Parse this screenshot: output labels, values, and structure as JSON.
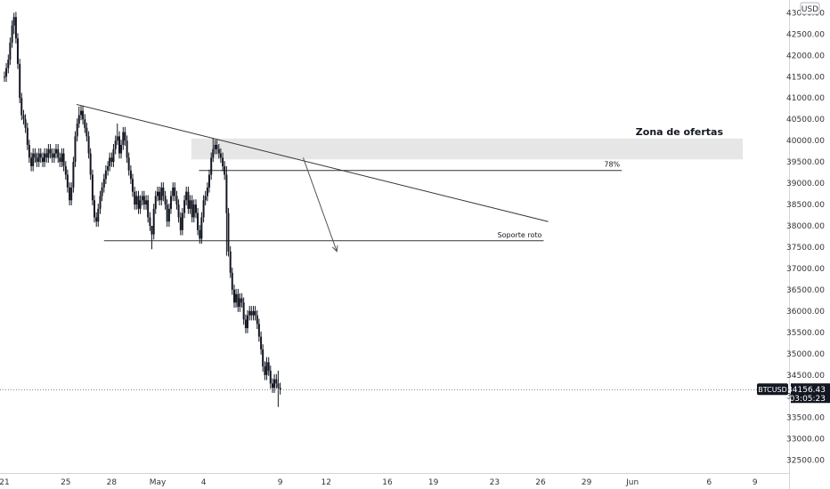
{
  "currency_badge": "USD",
  "symbol_label": "BTCUSD",
  "last_price_label": "34156.43",
  "countdown_label": "03:05:23",
  "chart_data": {
    "type": "candlestick",
    "symbol": "BTCUSD",
    "currency": "USD",
    "last_price": 34156.43,
    "ylim": [
      32200,
      43300
    ],
    "y_ticks": [
      32500,
      33000,
      33500,
      34000,
      34500,
      35000,
      35500,
      36000,
      36500,
      37000,
      37500,
      38000,
      38500,
      39000,
      39500,
      40000,
      40500,
      41000,
      41500,
      42000,
      42500,
      43000
    ],
    "y_tick_labels": [
      "32500.00",
      "33000.00",
      "33500.00",
      "34000.00",
      "34500.00",
      "35000.00",
      "35500.00",
      "36000.00",
      "36500.00",
      "37000.00",
      "37500.00",
      "38000.00",
      "38500.00",
      "39000.00",
      "39500.00",
      "40000.00",
      "40500.00",
      "41000.00",
      "41500.00",
      "42000.00",
      "42500.00",
      "43000.00"
    ],
    "x_ticks": [
      {
        "t": 0,
        "label": "21"
      },
      {
        "t": 4,
        "label": "25"
      },
      {
        "t": 7,
        "label": "28"
      },
      {
        "t": 10,
        "label": "May"
      },
      {
        "t": 13,
        "label": "4"
      },
      {
        "t": 18,
        "label": "9"
      },
      {
        "t": 21,
        "label": "12"
      },
      {
        "t": 25,
        "label": "16"
      },
      {
        "t": 28,
        "label": "19"
      },
      {
        "t": 32,
        "label": "23"
      },
      {
        "t": 35,
        "label": "26"
      },
      {
        "t": 38,
        "label": "29"
      },
      {
        "t": 41,
        "label": "Jun"
      },
      {
        "t": 46,
        "label": "6"
      },
      {
        "t": 49,
        "label": "9"
      }
    ],
    "xlim": [
      0,
      51
    ],
    "series_close": [
      [
        0.0,
        41500
      ],
      [
        0.12,
        41700
      ],
      [
        0.25,
        41900
      ],
      [
        0.37,
        42300
      ],
      [
        0.5,
        42700
      ],
      [
        0.62,
        42900
      ],
      [
        0.75,
        42400
      ],
      [
        0.87,
        41800
      ],
      [
        1.0,
        41000
      ],
      [
        1.12,
        40600
      ],
      [
        1.25,
        40500
      ],
      [
        1.37,
        40300
      ],
      [
        1.5,
        39900
      ],
      [
        1.62,
        39600
      ],
      [
        1.75,
        39400
      ],
      [
        1.87,
        39700
      ],
      [
        2.0,
        39600
      ],
      [
        2.12,
        39500
      ],
      [
        2.25,
        39700
      ],
      [
        2.37,
        39600
      ],
      [
        2.5,
        39500
      ],
      [
        2.62,
        39700
      ],
      [
        2.75,
        39600
      ],
      [
        2.87,
        39800
      ],
      [
        3.0,
        39700
      ],
      [
        3.12,
        39600
      ],
      [
        3.25,
        39700
      ],
      [
        3.37,
        39800
      ],
      [
        3.5,
        39600
      ],
      [
        3.62,
        39500
      ],
      [
        3.75,
        39700
      ],
      [
        3.87,
        39400
      ],
      [
        4.0,
        39200
      ],
      [
        4.12,
        38900
      ],
      [
        4.25,
        38600
      ],
      [
        4.37,
        38900
      ],
      [
        4.5,
        39500
      ],
      [
        4.62,
        40100
      ],
      [
        4.75,
        40400
      ],
      [
        4.87,
        40600
      ],
      [
        5.0,
        40700
      ],
      [
        5.12,
        40500
      ],
      [
        5.25,
        40300
      ],
      [
        5.37,
        40100
      ],
      [
        5.5,
        39700
      ],
      [
        5.62,
        39200
      ],
      [
        5.75,
        38600
      ],
      [
        5.87,
        38200
      ],
      [
        6.0,
        38100
      ],
      [
        6.12,
        38400
      ],
      [
        6.25,
        38700
      ],
      [
        6.37,
        38900
      ],
      [
        6.5,
        39100
      ],
      [
        6.62,
        39300
      ],
      [
        6.75,
        39400
      ],
      [
        6.87,
        39600
      ],
      [
        7.0,
        39500
      ],
      [
        7.12,
        39800
      ],
      [
        7.25,
        40000
      ],
      [
        7.37,
        40100
      ],
      [
        7.5,
        39700
      ],
      [
        7.62,
        39900
      ],
      [
        7.75,
        40200
      ],
      [
        7.87,
        40000
      ],
      [
        8.0,
        39600
      ],
      [
        8.12,
        39300
      ],
      [
        8.25,
        39100
      ],
      [
        8.37,
        38800
      ],
      [
        8.5,
        38500
      ],
      [
        8.62,
        38700
      ],
      [
        8.75,
        38400
      ],
      [
        8.87,
        38600
      ],
      [
        9.0,
        38700
      ],
      [
        9.12,
        38500
      ],
      [
        9.25,
        38600
      ],
      [
        9.37,
        38200
      ],
      [
        9.5,
        38000
      ],
      [
        9.62,
        37800
      ],
      [
        9.75,
        38400
      ],
      [
        9.87,
        38700
      ],
      [
        10.0,
        38800
      ],
      [
        10.12,
        38600
      ],
      [
        10.25,
        38900
      ],
      [
        10.37,
        38700
      ],
      [
        10.5,
        38500
      ],
      [
        10.62,
        38100
      ],
      [
        10.75,
        38400
      ],
      [
        10.87,
        38700
      ],
      [
        11.0,
        38900
      ],
      [
        11.12,
        38700
      ],
      [
        11.25,
        38500
      ],
      [
        11.37,
        38200
      ],
      [
        11.5,
        37900
      ],
      [
        11.62,
        38300
      ],
      [
        11.75,
        38600
      ],
      [
        11.87,
        38800
      ],
      [
        12.0,
        38400
      ],
      [
        12.12,
        38600
      ],
      [
        12.25,
        38200
      ],
      [
        12.37,
        38500
      ],
      [
        12.5,
        38300
      ],
      [
        12.62,
        37900
      ],
      [
        12.75,
        37700
      ],
      [
        12.87,
        38200
      ],
      [
        13.0,
        38600
      ],
      [
        13.12,
        38700
      ],
      [
        13.25,
        38900
      ],
      [
        13.37,
        39200
      ],
      [
        13.5,
        39600
      ],
      [
        13.62,
        39800
      ],
      [
        13.75,
        39900
      ],
      [
        13.87,
        39800
      ],
      [
        14.0,
        39700
      ],
      [
        14.12,
        39600
      ],
      [
        14.25,
        39400
      ],
      [
        14.37,
        39200
      ],
      [
        14.5,
        38300
      ],
      [
        14.62,
        37400
      ],
      [
        14.75,
        36900
      ],
      [
        14.87,
        36500
      ],
      [
        15.0,
        36200
      ],
      [
        15.12,
        36400
      ],
      [
        15.25,
        36100
      ],
      [
        15.37,
        36300
      ],
      [
        15.5,
        36200
      ],
      [
        15.62,
        35800
      ],
      [
        15.75,
        35600
      ],
      [
        15.87,
        35900
      ],
      [
        16.0,
        36000
      ],
      [
        16.12,
        35900
      ],
      [
        16.25,
        36000
      ],
      [
        16.37,
        35900
      ],
      [
        16.5,
        35700
      ],
      [
        16.62,
        35400
      ],
      [
        16.75,
        35100
      ],
      [
        16.87,
        34700
      ],
      [
        17.0,
        34500
      ],
      [
        17.12,
        34800
      ],
      [
        17.25,
        34600
      ],
      [
        17.37,
        34300
      ],
      [
        17.5,
        34200
      ],
      [
        17.62,
        34400
      ],
      [
        17.75,
        34300
      ],
      [
        17.87,
        34200
      ],
      [
        18.0,
        34160
      ]
    ],
    "series_high_low": [
      [
        0.62,
        43000,
        42500
      ],
      [
        4.87,
        40800,
        40300
      ],
      [
        7.37,
        40400,
        39900
      ],
      [
        9.62,
        38000,
        37450
      ],
      [
        13.62,
        40050,
        39500
      ],
      [
        14.5,
        39400,
        37300
      ],
      [
        17.87,
        34600,
        33750
      ]
    ],
    "trendline": {
      "from": [
        4.7,
        40850
      ],
      "to": [
        35.5,
        38100
      ]
    },
    "supply_zone": {
      "label": "Zona de ofertas",
      "x_range": [
        12.2,
        48.2
      ],
      "y_range": [
        39560,
        40050
      ]
    },
    "fib_line": {
      "label": "78%",
      "x_range": [
        12.7,
        40.3
      ],
      "y": 39300
    },
    "support_line": {
      "label": "Soporte roto",
      "x_range": [
        6.5,
        35.2
      ],
      "y": 37650
    },
    "arrow": {
      "from": [
        19.5,
        39600
      ],
      "to": [
        21.7,
        37400
      ]
    }
  }
}
